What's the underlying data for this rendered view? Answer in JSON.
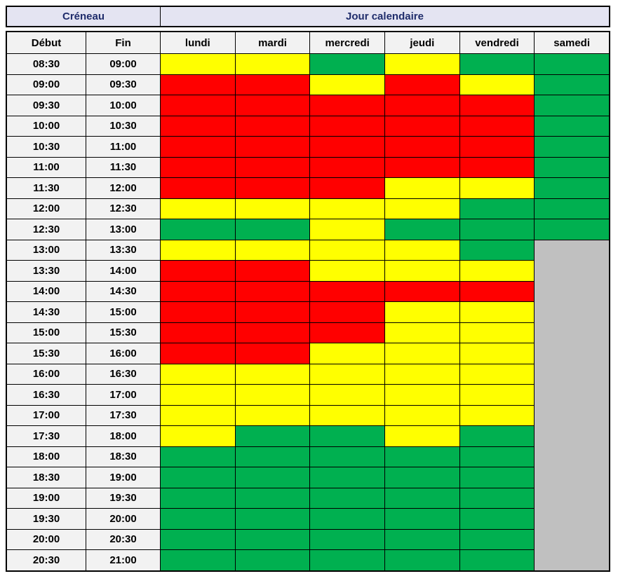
{
  "header": {
    "creneau_label": "Créneau",
    "jour_label": "Jour calendaire",
    "debut_label": "Début",
    "fin_label": "Fin"
  },
  "days": [
    "lundi",
    "mardi",
    "mercredi",
    "jeudi",
    "vendredi",
    "samedi"
  ],
  "colors": {
    "red": "#ff0000",
    "yellow": "#ffff00",
    "green": "#00b050",
    "gray": "#c0c0c0",
    "header_bg": "#e4e4f2",
    "subheader_bg": "#f2f2f2",
    "header_text": "#1f2c6b",
    "border": "#000000"
  },
  "chart_data": {
    "type": "heatmap",
    "title": "Créneau / Jour calendaire availability grid",
    "columns": [
      "lundi",
      "mardi",
      "mercredi",
      "jeudi",
      "vendredi",
      "samedi"
    ],
    "legend_position": "none",
    "grid": true,
    "merged_region": {
      "column": "samedi",
      "from": "13:00",
      "to": "21:00",
      "value": "gray"
    },
    "rows": [
      {
        "debut": "08:30",
        "fin": "09:00",
        "cells": [
          "yellow",
          "yellow",
          "green",
          "yellow",
          "green",
          "green"
        ]
      },
      {
        "debut": "09:00",
        "fin": "09:30",
        "cells": [
          "red",
          "red",
          "yellow",
          "red",
          "yellow",
          "green"
        ]
      },
      {
        "debut": "09:30",
        "fin": "10:00",
        "cells": [
          "red",
          "red",
          "red",
          "red",
          "red",
          "green"
        ]
      },
      {
        "debut": "10:00",
        "fin": "10:30",
        "cells": [
          "red",
          "red",
          "red",
          "red",
          "red",
          "green"
        ]
      },
      {
        "debut": "10:30",
        "fin": "11:00",
        "cells": [
          "red",
          "red",
          "red",
          "red",
          "red",
          "green"
        ]
      },
      {
        "debut": "11:00",
        "fin": "11:30",
        "cells": [
          "red",
          "red",
          "red",
          "red",
          "red",
          "green"
        ]
      },
      {
        "debut": "11:30",
        "fin": "12:00",
        "cells": [
          "red",
          "red",
          "red",
          "yellow",
          "yellow",
          "green"
        ]
      },
      {
        "debut": "12:00",
        "fin": "12:30",
        "cells": [
          "yellow",
          "yellow",
          "yellow",
          "yellow",
          "green",
          "green"
        ]
      },
      {
        "debut": "12:30",
        "fin": "13:00",
        "cells": [
          "green",
          "green",
          "yellow",
          "green",
          "green",
          "green"
        ]
      },
      {
        "debut": "13:00",
        "fin": "13:30",
        "cells": [
          "yellow",
          "yellow",
          "yellow",
          "yellow",
          "green",
          "gray"
        ]
      },
      {
        "debut": "13:30",
        "fin": "14:00",
        "cells": [
          "red",
          "red",
          "yellow",
          "yellow",
          "yellow",
          "gray"
        ]
      },
      {
        "debut": "14:00",
        "fin": "14:30",
        "cells": [
          "red",
          "red",
          "red",
          "red",
          "red",
          "gray"
        ]
      },
      {
        "debut": "14:30",
        "fin": "15:00",
        "cells": [
          "red",
          "red",
          "red",
          "yellow",
          "yellow",
          "gray"
        ]
      },
      {
        "debut": "15:00",
        "fin": "15:30",
        "cells": [
          "red",
          "red",
          "red",
          "yellow",
          "yellow",
          "gray"
        ]
      },
      {
        "debut": "15:30",
        "fin": "16:00",
        "cells": [
          "red",
          "red",
          "yellow",
          "yellow",
          "yellow",
          "gray"
        ]
      },
      {
        "debut": "16:00",
        "fin": "16:30",
        "cells": [
          "yellow",
          "yellow",
          "yellow",
          "yellow",
          "yellow",
          "gray"
        ]
      },
      {
        "debut": "16:30",
        "fin": "17:00",
        "cells": [
          "yellow",
          "yellow",
          "yellow",
          "yellow",
          "yellow",
          "gray"
        ]
      },
      {
        "debut": "17:00",
        "fin": "17:30",
        "cells": [
          "yellow",
          "yellow",
          "yellow",
          "yellow",
          "yellow",
          "gray"
        ]
      },
      {
        "debut": "17:30",
        "fin": "18:00",
        "cells": [
          "yellow",
          "green",
          "green",
          "yellow",
          "green",
          "gray"
        ]
      },
      {
        "debut": "18:00",
        "fin": "18:30",
        "cells": [
          "green",
          "green",
          "green",
          "green",
          "green",
          "gray"
        ]
      },
      {
        "debut": "18:30",
        "fin": "19:00",
        "cells": [
          "green",
          "green",
          "green",
          "green",
          "green",
          "gray"
        ]
      },
      {
        "debut": "19:00",
        "fin": "19:30",
        "cells": [
          "green",
          "green",
          "green",
          "green",
          "green",
          "gray"
        ]
      },
      {
        "debut": "19:30",
        "fin": "20:00",
        "cells": [
          "green",
          "green",
          "green",
          "green",
          "green",
          "gray"
        ]
      },
      {
        "debut": "20:00",
        "fin": "20:30",
        "cells": [
          "green",
          "green",
          "green",
          "green",
          "green",
          "gray"
        ]
      },
      {
        "debut": "20:30",
        "fin": "21:00",
        "cells": [
          "green",
          "green",
          "green",
          "green",
          "green",
          "gray"
        ]
      }
    ]
  }
}
